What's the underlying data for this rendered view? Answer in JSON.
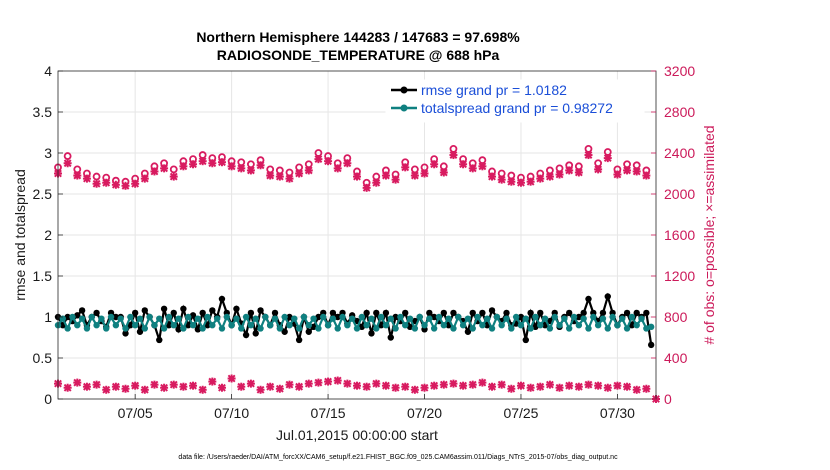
{
  "chart_data": {
    "type": "line",
    "title_line1": "Northern Hemisphere 144283 / 147683 = 97.698%",
    "title_line2": "RADIOSONDE_TEMPERATURE @ 688 hPa",
    "xlabel": "Jul.01,2015 00:00:00 start",
    "ylabel_left": "rmse and totalspread",
    "ylabel_right": "# of obs: o=possible; ×=assimilated",
    "footer": "data file: /Users/raeder/DAI/ATM_forcXX/CAM6_setup/f.e21.FHIST_BGC.f09_025.CAM6assim.011/Diags_NTrS_2015-07/obs_diag_output.nc",
    "xlim": [
      1,
      32
    ],
    "ylim_left": [
      0,
      4
    ],
    "ylim_right": [
      0,
      3200
    ],
    "x_ticks": [
      5,
      10,
      15,
      20,
      25,
      30
    ],
    "x_tick_labels": [
      "07/05",
      "07/10",
      "07/15",
      "07/20",
      "07/25",
      "07/30"
    ],
    "y_left_ticks": [
      0,
      0.5,
      1,
      1.5,
      2,
      2.5,
      3,
      3.5,
      4
    ],
    "y_left_tick_labels": [
      "0",
      "0.5",
      "1",
      "1.5",
      "2",
      "2.5",
      "3",
      "3.5",
      "4"
    ],
    "y_right_ticks": [
      0,
      400,
      800,
      1200,
      1600,
      2000,
      2400,
      2800,
      3200
    ],
    "y_right_tick_labels": [
      "0",
      "400",
      "800",
      "1200",
      "1600",
      "2000",
      "2400",
      "2800",
      "3200"
    ],
    "colors": {
      "rmse": "#000000",
      "spread": "#0f8080",
      "obs": "#d81b60",
      "right_axis": "#cc1a5a",
      "legend_text": "#1a4ed8"
    },
    "legend": [
      {
        "name": "rmse grand pr = 1.0182",
        "color": "#000000"
      },
      {
        "name": "totalspread grand pr = 0.98272",
        "color": "#0f8080"
      }
    ],
    "series": [
      {
        "name": "rmse",
        "axis": "left",
        "x": [
          1.0,
          1.25,
          1.5,
          1.75,
          2.0,
          2.25,
          2.5,
          2.75,
          3.0,
          3.25,
          3.5,
          3.75,
          4.0,
          4.25,
          4.5,
          4.75,
          5.0,
          5.25,
          5.5,
          5.75,
          6.0,
          6.25,
          6.5,
          6.75,
          7.0,
          7.25,
          7.5,
          7.75,
          8.0,
          8.25,
          8.5,
          8.75,
          9.0,
          9.25,
          9.5,
          9.75,
          10.0,
          10.25,
          10.5,
          10.75,
          11.0,
          11.25,
          11.5,
          11.75,
          12.0,
          12.25,
          12.5,
          12.75,
          13.0,
          13.25,
          13.5,
          13.75,
          14.0,
          14.25,
          14.5,
          14.75,
          15.0,
          15.25,
          15.5,
          15.75,
          16.0,
          16.25,
          16.5,
          16.75,
          17.0,
          17.25,
          17.5,
          17.75,
          18.0,
          18.25,
          18.5,
          18.75,
          19.0,
          19.25,
          19.5,
          19.75,
          20.0,
          20.25,
          20.5,
          20.75,
          21.0,
          21.25,
          21.5,
          21.75,
          22.0,
          22.25,
          22.5,
          22.75,
          23.0,
          23.25,
          23.5,
          23.75,
          24.0,
          24.25,
          24.5,
          24.75,
          25.0,
          25.25,
          25.5,
          25.75,
          26.0,
          26.25,
          26.5,
          26.75,
          27.0,
          27.25,
          27.5,
          27.75,
          28.0,
          28.25,
          28.5,
          28.75,
          29.0,
          29.25,
          29.5,
          29.75,
          30.0,
          30.25,
          30.5,
          30.75,
          31.0,
          31.25,
          31.5,
          31.75
        ],
        "values": [
          1.0,
          0.9,
          1.0,
          0.95,
          1.02,
          1.08,
          0.9,
          1.0,
          1.05,
          0.95,
          0.88,
          1.05,
          1.0,
          1.0,
          0.8,
          0.9,
          1.05,
          0.82,
          1.08,
          1.0,
          0.9,
          0.72,
          1.1,
          0.9,
          1.05,
          0.85,
          1.1,
          0.9,
          1.02,
          0.85,
          1.05,
          0.9,
          1.08,
          1.0,
          1.22,
          1.05,
          0.9,
          1.1,
          0.92,
          0.78,
          1.05,
          0.8,
          1.08,
          1.0,
          0.9,
          1.05,
          0.9,
          0.82,
          1.0,
          0.92,
          0.72,
          1.0,
          0.82,
          0.88,
          1.0,
          1.05,
          0.9,
          1.05,
          1.0,
          1.05,
          0.92,
          1.02,
          0.95,
          0.88,
          1.05,
          0.8,
          1.05,
          0.9,
          1.05,
          0.75,
          1.0,
          0.95,
          1.05,
          0.88,
          0.95,
          1.0,
          0.85,
          1.05,
          1.0,
          0.95,
          1.05,
          0.9,
          1.05,
          1.0,
          0.95,
          0.82,
          1.05,
          0.95,
          1.05,
          0.9,
          1.08,
          1.0,
          0.95,
          1.05,
          0.9,
          0.92,
          1.0,
          0.72,
          1.05,
          0.88,
          1.05,
          0.9,
          0.95,
          1.05,
          0.88,
          1.0,
          1.05,
          0.95,
          1.0,
          1.05,
          1.22,
          1.05,
          0.95,
          1.05,
          1.25,
          1.05,
          0.9,
          1.0,
          1.05,
          0.9,
          1.05,
          1.0,
          1.05,
          0.66
        ],
        "color": "#000000"
      },
      {
        "name": "totalspread",
        "axis": "left",
        "x": [
          1.0,
          1.25,
          1.5,
          1.75,
          2.0,
          2.25,
          2.5,
          2.75,
          3.0,
          3.25,
          3.5,
          3.75,
          4.0,
          4.25,
          4.5,
          4.75,
          5.0,
          5.25,
          5.5,
          5.75,
          6.0,
          6.25,
          6.5,
          6.75,
          7.0,
          7.25,
          7.5,
          7.75,
          8.0,
          8.25,
          8.5,
          8.75,
          9.0,
          9.25,
          9.5,
          9.75,
          10.0,
          10.25,
          10.5,
          10.75,
          11.0,
          11.25,
          11.5,
          11.75,
          12.0,
          12.25,
          12.5,
          12.75,
          13.0,
          13.25,
          13.5,
          13.75,
          14.0,
          14.25,
          14.5,
          14.75,
          15.0,
          15.25,
          15.5,
          15.75,
          16.0,
          16.25,
          16.5,
          16.75,
          17.0,
          17.25,
          17.5,
          17.75,
          18.0,
          18.25,
          18.5,
          18.75,
          19.0,
          19.25,
          19.5,
          19.75,
          20.0,
          20.25,
          20.5,
          20.75,
          21.0,
          21.25,
          21.5,
          21.75,
          22.0,
          22.25,
          22.5,
          22.75,
          23.0,
          23.25,
          23.5,
          23.75,
          24.0,
          24.25,
          24.5,
          24.75,
          25.0,
          25.25,
          25.5,
          25.75,
          26.0,
          26.25,
          26.5,
          26.75,
          27.0,
          27.25,
          27.5,
          27.75,
          28.0,
          28.25,
          28.5,
          28.75,
          29.0,
          29.25,
          29.5,
          29.75,
          30.0,
          30.25,
          30.5,
          30.75,
          31.0,
          31.25,
          31.5,
          31.75
        ],
        "values": [
          0.9,
          0.98,
          0.86,
          1.0,
          0.9,
          0.98,
          0.86,
          1.0,
          0.9,
          0.98,
          0.86,
          1.0,
          0.9,
          0.98,
          0.86,
          1.0,
          0.9,
          0.98,
          0.86,
          1.0,
          0.9,
          0.98,
          0.86,
          1.0,
          0.9,
          0.98,
          0.86,
          1.0,
          0.9,
          0.98,
          0.86,
          1.0,
          0.9,
          0.98,
          0.86,
          1.0,
          0.9,
          0.98,
          0.86,
          1.0,
          0.9,
          0.98,
          0.86,
          1.0,
          0.9,
          0.98,
          0.86,
          1.0,
          0.9,
          0.98,
          0.86,
          1.0,
          0.9,
          0.98,
          0.86,
          1.0,
          0.9,
          0.98,
          0.86,
          1.0,
          0.9,
          0.98,
          0.86,
          1.0,
          0.9,
          0.98,
          0.86,
          1.0,
          0.9,
          0.98,
          0.86,
          1.0,
          0.9,
          0.98,
          0.86,
          1.0,
          0.9,
          0.98,
          0.86,
          1.0,
          0.9,
          0.98,
          0.86,
          1.0,
          0.9,
          0.98,
          0.86,
          1.0,
          0.9,
          0.98,
          0.86,
          1.0,
          0.9,
          0.98,
          0.86,
          1.0,
          0.9,
          0.98,
          0.86,
          1.0,
          0.9,
          0.98,
          0.86,
          1.0,
          0.9,
          0.98,
          0.86,
          1.0,
          0.9,
          0.98,
          0.86,
          1.0,
          0.9,
          0.98,
          0.86,
          1.0,
          0.9,
          0.98,
          0.86,
          1.0,
          0.9,
          0.98,
          0.86,
          0.88
        ],
        "color": "#0f8080"
      },
      {
        "name": "obs possible",
        "axis": "right",
        "marker": "o",
        "x": [
          1.0,
          1.5,
          2.0,
          2.5,
          3.0,
          3.5,
          4.0,
          4.5,
          5.0,
          5.5,
          6.0,
          6.5,
          7.0,
          7.5,
          8.0,
          8.5,
          9.0,
          9.5,
          10.0,
          10.5,
          11.0,
          11.5,
          12.0,
          12.5,
          13.0,
          13.5,
          14.0,
          14.5,
          15.0,
          15.5,
          16.0,
          16.5,
          17.0,
          17.5,
          18.0,
          18.5,
          19.0,
          19.5,
          20.0,
          20.5,
          21.0,
          21.5,
          22.0,
          22.5,
          23.0,
          23.5,
          24.0,
          24.5,
          25.0,
          25.5,
          26.0,
          26.5,
          27.0,
          27.5,
          28.0,
          28.5,
          29.0,
          29.5,
          30.0,
          30.5,
          31.0,
          31.5
        ],
        "values": [
          2260,
          2370,
          2240,
          2200,
          2170,
          2160,
          2130,
          2120,
          2150,
          2200,
          2270,
          2300,
          2240,
          2320,
          2340,
          2380,
          2350,
          2360,
          2320,
          2310,
          2290,
          2330,
          2240,
          2230,
          2210,
          2260,
          2290,
          2400,
          2370,
          2300,
          2350,
          2220,
          2110,
          2170,
          2230,
          2190,
          2310,
          2240,
          2260,
          2340,
          2270,
          2440,
          2340,
          2300,
          2330,
          2220,
          2200,
          2180,
          2160,
          2170,
          2200,
          2230,
          2250,
          2280,
          2270,
          2440,
          2300,
          2410,
          2240,
          2290,
          2280,
          2230
        ],
        "color": "#d81b60"
      },
      {
        "name": "obs assimilated",
        "axis": "right",
        "marker": "x",
        "x": [
          1.0,
          1.5,
          2.0,
          2.5,
          3.0,
          3.5,
          4.0,
          4.5,
          5.0,
          5.5,
          6.0,
          6.5,
          7.0,
          7.5,
          8.0,
          8.5,
          9.0,
          9.5,
          10.0,
          10.5,
          11.0,
          11.5,
          12.0,
          12.5,
          13.0,
          13.5,
          14.0,
          14.5,
          15.0,
          15.5,
          16.0,
          16.5,
          17.0,
          17.5,
          18.0,
          18.5,
          19.0,
          19.5,
          20.0,
          20.5,
          21.0,
          21.5,
          22.0,
          22.5,
          23.0,
          23.5,
          24.0,
          24.5,
          25.0,
          25.5,
          26.0,
          26.5,
          27.0,
          27.5,
          28.0,
          28.5,
          29.0,
          29.5,
          30.0,
          30.5,
          31.0,
          31.5
        ],
        "values": [
          2200,
          2300,
          2180,
          2150,
          2100,
          2110,
          2090,
          2080,
          2100,
          2150,
          2220,
          2250,
          2170,
          2270,
          2290,
          2320,
          2300,
          2310,
          2270,
          2250,
          2230,
          2280,
          2180,
          2170,
          2150,
          2200,
          2230,
          2340,
          2320,
          2250,
          2300,
          2170,
          2060,
          2110,
          2180,
          2140,
          2260,
          2180,
          2200,
          2290,
          2210,
          2380,
          2290,
          2250,
          2270,
          2170,
          2140,
          2120,
          2110,
          2120,
          2150,
          2170,
          2190,
          2230,
          2210,
          2380,
          2240,
          2350,
          2190,
          2230,
          2220,
          2180
        ],
        "color": "#d81b60"
      },
      {
        "name": "obs low",
        "axis": "right",
        "marker": "x",
        "x": [
          1.0,
          1.5,
          2.0,
          2.5,
          3.0,
          3.5,
          4.0,
          4.5,
          5.0,
          5.5,
          6.0,
          6.5,
          7.0,
          7.5,
          8.0,
          8.5,
          9.0,
          9.5,
          10.0,
          10.5,
          11.0,
          11.5,
          12.0,
          12.5,
          13.0,
          13.5,
          14.0,
          14.5,
          15.0,
          15.5,
          16.0,
          16.5,
          17.0,
          17.5,
          18.0,
          18.5,
          19.0,
          19.5,
          20.0,
          20.5,
          21.0,
          21.5,
          22.0,
          22.5,
          23.0,
          23.5,
          24.0,
          24.5,
          25.0,
          25.5,
          26.0,
          26.5,
          27.0,
          27.5,
          28.0,
          28.5,
          29.0,
          29.5,
          30.0,
          30.5,
          31.0,
          31.5,
          32.0
        ],
        "values": [
          150,
          110,
          160,
          120,
          140,
          90,
          120,
          100,
          130,
          90,
          140,
          110,
          140,
          120,
          130,
          90,
          170,
          110,
          200,
          120,
          150,
          90,
          120,
          100,
          140,
          120,
          150,
          160,
          170,
          180,
          150,
          130,
          120,
          150,
          130,
          110,
          120,
          90,
          110,
          130,
          140,
          150,
          130,
          140,
          160,
          120,
          140,
          100,
          130,
          110,
          120,
          140,
          110,
          130,
          120,
          140,
          130,
          110,
          130,
          120,
          90,
          100,
          0
        ],
        "color": "#d81b60"
      }
    ]
  }
}
